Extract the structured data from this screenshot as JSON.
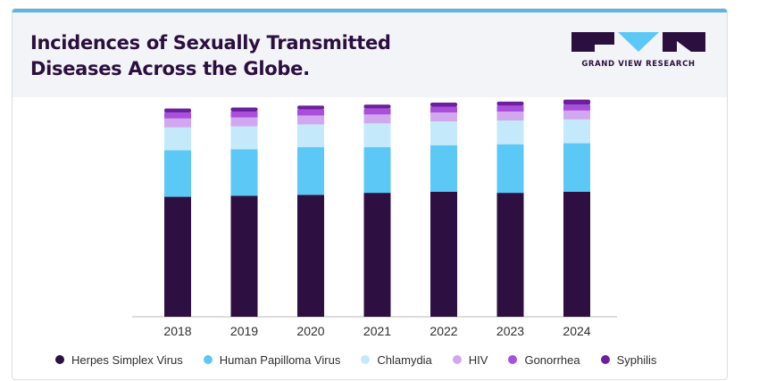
{
  "header": {
    "title_line1": "Incidences of Sexually Transmitted",
    "title_line2": "Diseases Across the Globe.",
    "brand": "GRAND VIEW RESEARCH"
  },
  "colors": {
    "topbar": "#5ab4e5",
    "brand_dark": "#2b0f3f",
    "brand_blue": "#5bc8f5"
  },
  "chart_data": {
    "type": "bar",
    "stacked": true,
    "categories": [
      "2018",
      "2019",
      "2020",
      "2021",
      "2022",
      "2023",
      "2024"
    ],
    "series": [
      {
        "name": "Herpes Simplex Virus",
        "color": "#2e0f41",
        "values": [
          121,
          122,
          123,
          125,
          126,
          125,
          126
        ]
      },
      {
        "name": "Human Papilloma Virus",
        "color": "#5bc8f5",
        "values": [
          47,
          47,
          48,
          46,
          47,
          49,
          49
        ]
      },
      {
        "name": "Chlamydia",
        "color": "#c4e9fa",
        "values": [
          23,
          23,
          23,
          24,
          24,
          24,
          24
        ]
      },
      {
        "name": "HIV",
        "color": "#d1a8f0",
        "values": [
          9,
          9,
          9,
          9,
          9,
          9,
          9
        ]
      },
      {
        "name": "Gonorrhea",
        "color": "#a94fdc",
        "values": [
          6,
          6,
          6,
          6,
          6,
          6,
          6
        ]
      },
      {
        "name": "Syphilis",
        "color": "#6c1f9e",
        "values": [
          4,
          4,
          4,
          4,
          4,
          4,
          5
        ]
      }
    ],
    "ylim": [
      0,
      225
    ],
    "grid": false,
    "legend_position": "bottom"
  }
}
